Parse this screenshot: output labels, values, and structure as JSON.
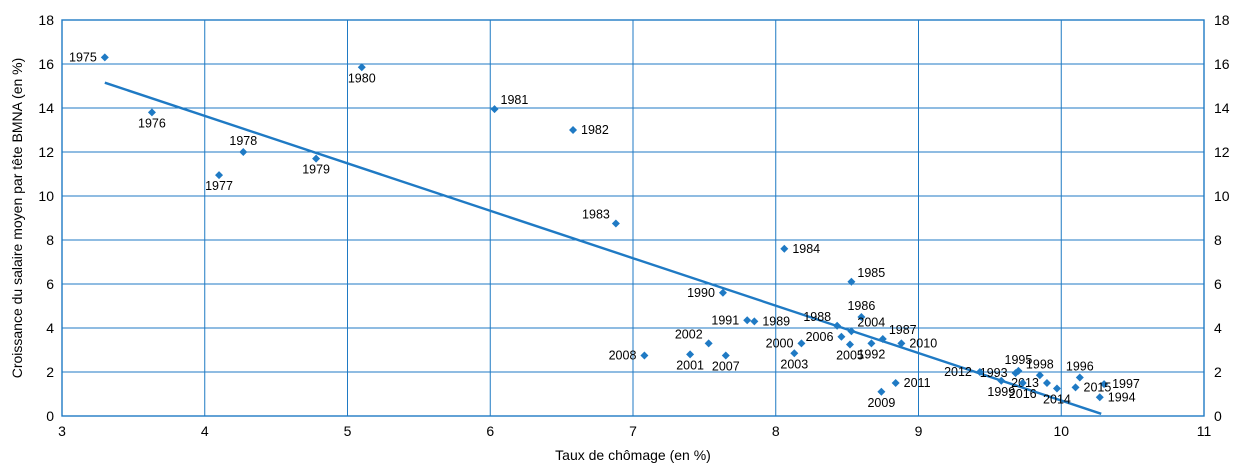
{
  "chart_data": {
    "type": "scatter",
    "xlabel": "Taux de chômage (en %)",
    "ylabel": "Croissance du salaire moyen par tête BMNA (en %)",
    "xlim": [
      3,
      11
    ],
    "ylim": [
      0,
      18
    ],
    "x_ticks": [
      "3",
      "4",
      "5",
      "6",
      "7",
      "8",
      "9",
      "10",
      "11"
    ],
    "y_ticks": [
      "0",
      "2",
      "4",
      "6",
      "8",
      "10",
      "12",
      "14",
      "16",
      "18"
    ],
    "grid": true,
    "colors": {
      "marker": "#1f7ac4",
      "grid": "#1f7ac4",
      "trend": "#1f7ac4"
    },
    "trendline": {
      "x": [
        3.3,
        10.28
      ],
      "y": [
        15.15,
        0.1
      ]
    },
    "points": [
      {
        "label": "1975",
        "x": 3.3,
        "y": 16.3,
        "label_pos": "left"
      },
      {
        "label": "1976",
        "x": 3.63,
        "y": 13.8,
        "label_pos": "below"
      },
      {
        "label": "1977",
        "x": 4.1,
        "y": 10.95,
        "label_pos": "below"
      },
      {
        "label": "1978",
        "x": 4.27,
        "y": 12.0,
        "label_pos": "above"
      },
      {
        "label": "1979",
        "x": 4.78,
        "y": 11.7,
        "label_pos": "below"
      },
      {
        "label": "1980",
        "x": 5.1,
        "y": 15.85,
        "label_pos": "below"
      },
      {
        "label": "1981",
        "x": 6.03,
        "y": 13.95,
        "label_pos": "above-right"
      },
      {
        "label": "1982",
        "x": 6.58,
        "y": 13.0,
        "label_pos": "right"
      },
      {
        "label": "1983",
        "x": 6.88,
        "y": 8.75,
        "label_pos": "above-left"
      },
      {
        "label": "1984",
        "x": 8.06,
        "y": 7.6,
        "label_pos": "right"
      },
      {
        "label": "1985",
        "x": 8.53,
        "y": 6.1,
        "label_pos": "above-right"
      },
      {
        "label": "1986",
        "x": 8.6,
        "y": 4.5,
        "label_pos": "above"
      },
      {
        "label": "1987",
        "x": 8.75,
        "y": 3.5,
        "label_pos": "above-right"
      },
      {
        "label": "1988",
        "x": 8.43,
        "y": 4.1,
        "label_pos": "above-left"
      },
      {
        "label": "1989",
        "x": 7.85,
        "y": 4.3,
        "label_pos": "right"
      },
      {
        "label": "1990",
        "x": 7.63,
        "y": 5.6,
        "label_pos": "left"
      },
      {
        "label": "1991",
        "x": 7.8,
        "y": 4.35,
        "label_pos": "left"
      },
      {
        "label": "1992",
        "x": 8.67,
        "y": 3.3,
        "label_pos": "below"
      },
      {
        "label": "1993",
        "x": 9.68,
        "y": 1.95,
        "label_pos": "left"
      },
      {
        "label": "1994",
        "x": 10.27,
        "y": 0.85,
        "label_pos": "right"
      },
      {
        "label": "1995",
        "x": 9.7,
        "y": 2.05,
        "label_pos": "above"
      },
      {
        "label": "1996",
        "x": 10.13,
        "y": 1.75,
        "label_pos": "above"
      },
      {
        "label": "1997",
        "x": 10.3,
        "y": 1.45,
        "label_pos": "right"
      },
      {
        "label": "1998",
        "x": 9.85,
        "y": 1.85,
        "label_pos": "above"
      },
      {
        "label": "1999",
        "x": 9.58,
        "y": 1.6,
        "label_pos": "below"
      },
      {
        "label": "2000",
        "x": 8.18,
        "y": 3.3,
        "label_pos": "left"
      },
      {
        "label": "2001",
        "x": 7.4,
        "y": 2.8,
        "label_pos": "below"
      },
      {
        "label": "2002",
        "x": 7.53,
        "y": 3.3,
        "label_pos": "above-left"
      },
      {
        "label": "2003",
        "x": 8.13,
        "y": 2.85,
        "label_pos": "below"
      },
      {
        "label": "2004",
        "x": 8.53,
        "y": 3.85,
        "label_pos": "above-right"
      },
      {
        "label": "2005",
        "x": 8.52,
        "y": 3.25,
        "label_pos": "below"
      },
      {
        "label": "2006",
        "x": 8.46,
        "y": 3.6,
        "label_pos": "left"
      },
      {
        "label": "2007",
        "x": 7.65,
        "y": 2.75,
        "label_pos": "below"
      },
      {
        "label": "2008",
        "x": 7.08,
        "y": 2.75,
        "label_pos": "left"
      },
      {
        "label": "2009",
        "x": 8.74,
        "y": 1.1,
        "label_pos": "below"
      },
      {
        "label": "2010",
        "x": 8.88,
        "y": 3.3,
        "label_pos": "right"
      },
      {
        "label": "2011",
        "x": 8.84,
        "y": 1.5,
        "label_pos": "right"
      },
      {
        "label": "2012",
        "x": 9.43,
        "y": 2.0,
        "label_pos": "left"
      },
      {
        "label": "2013",
        "x": 9.9,
        "y": 1.5,
        "label_pos": "left"
      },
      {
        "label": "2014",
        "x": 9.97,
        "y": 1.25,
        "label_pos": "below"
      },
      {
        "label": "2015",
        "x": 10.1,
        "y": 1.3,
        "label_pos": "right"
      },
      {
        "label": "2016",
        "x": 9.73,
        "y": 1.5,
        "label_pos": "below"
      }
    ]
  }
}
